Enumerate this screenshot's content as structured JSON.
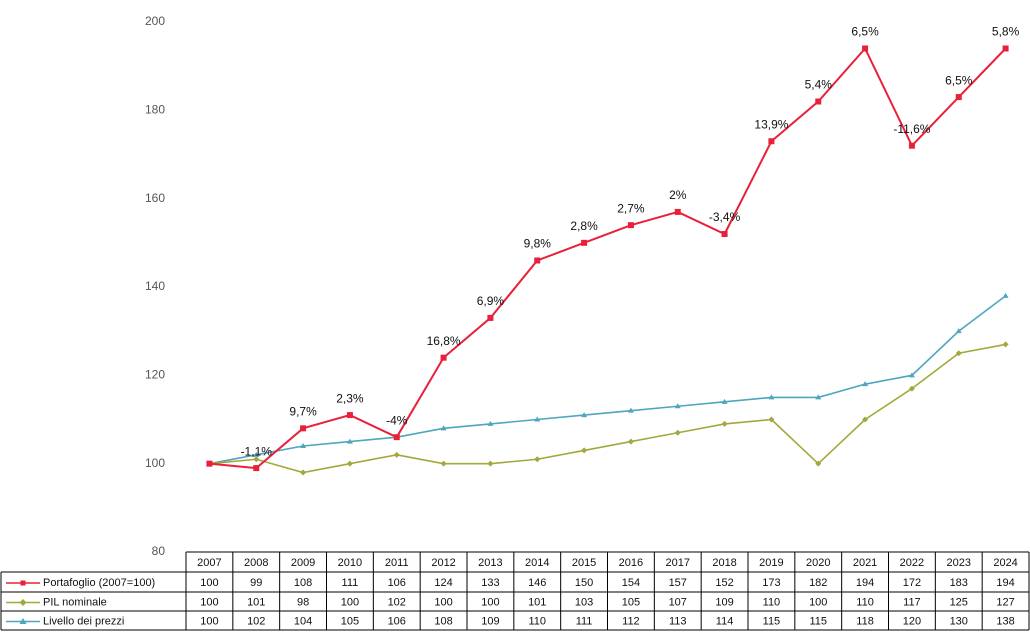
{
  "chart_data": {
    "type": "line",
    "categories": [
      "2007",
      "2008",
      "2009",
      "2010",
      "2011",
      "2012",
      "2013",
      "2014",
      "2015",
      "2016",
      "2017",
      "2018",
      "2019",
      "2020",
      "2021",
      "2022",
      "2023",
      "2024"
    ],
    "ylim": [
      80,
      200
    ],
    "yticks": [
      80,
      100,
      120,
      140,
      160,
      180,
      200
    ],
    "grid": false,
    "series": [
      {
        "name": "Portafoglio (2007=100)",
        "color": "#e8203a",
        "marker": "square",
        "values": [
          100,
          99,
          108,
          111,
          106,
          124,
          133,
          146,
          150,
          154,
          157,
          152,
          173,
          182,
          194,
          172,
          183,
          194
        ],
        "annotations": [
          null,
          "-1,1%",
          "9,7%",
          "2,3%",
          "-4%",
          "16,8%",
          "6,9%",
          "9,8%",
          "2,8%",
          "2,7%",
          "2%",
          "-3,4%",
          "13,9%",
          "5,4%",
          "6,5%",
          "-11,6%",
          "6,5%",
          "5,8%"
        ]
      },
      {
        "name": "PIL nominale",
        "color": "#a3a83c",
        "marker": "diamond",
        "values": [
          100,
          101,
          98,
          100,
          102,
          100,
          100,
          101,
          103,
          105,
          107,
          109,
          110,
          100,
          110,
          117,
          125,
          127
        ]
      },
      {
        "name": "Livello dei prezzi",
        "color": "#4ea6bd",
        "marker": "triangle",
        "values": [
          100,
          102,
          104,
          105,
          106,
          108,
          109,
          110,
          111,
          112,
          113,
          114,
          115,
          115,
          118,
          120,
          130,
          138
        ]
      }
    ]
  }
}
